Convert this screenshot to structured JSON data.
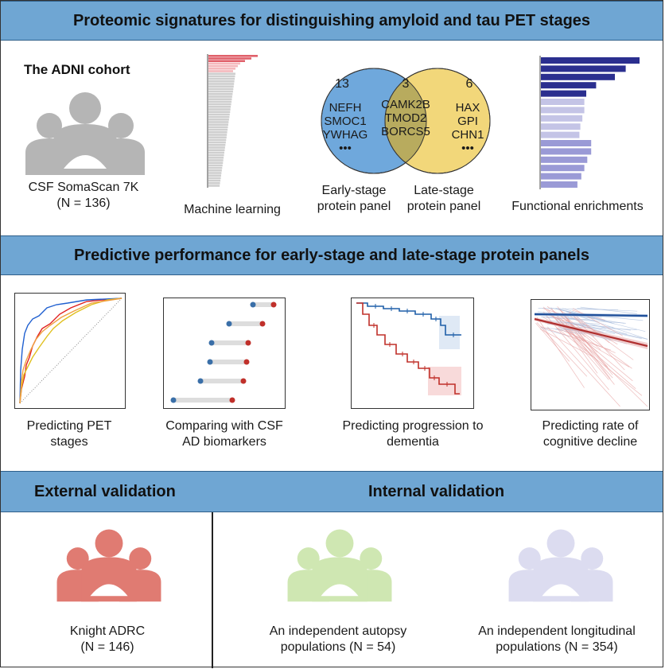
{
  "header1": {
    "title": "Proteomic signatures for distinguishing amyloid and tau PET stages"
  },
  "cohort": {
    "title": "The ADNI cohort",
    "line1": "CSF SomaScan 7K",
    "line2": "(N = 136)"
  },
  "ml": {
    "label": "Machine learning"
  },
  "venn": {
    "left_count": "13",
    "mid_count": "3",
    "right_count": "6",
    "left_proteins": [
      "NEFH",
      "SMOC1",
      "YWHAG",
      "•••"
    ],
    "mid_proteins": [
      "CAMK2B",
      "TMOD2",
      "BORCS5"
    ],
    "right_proteins": [
      "HAX",
      "GPI",
      "CHN1",
      "•••"
    ],
    "left_label_1": "Early-stage",
    "left_label_2": "protein panel",
    "right_label_1": "Late-stage",
    "right_label_2": "protein panel"
  },
  "enrich": {
    "label": "Functional enrichments",
    "bars": [
      {
        "value": 1.0,
        "color": "#2b2f8f"
      },
      {
        "value": 0.86,
        "color": "#2b2f8f"
      },
      {
        "value": 0.75,
        "color": "#2b2f8f"
      },
      {
        "value": 0.56,
        "color": "#2b2f8f"
      },
      {
        "value": 0.46,
        "color": "#2b2f8f"
      },
      {
        "value": 0.44,
        "color": "#c4c4e6"
      },
      {
        "value": 0.44,
        "color": "#c4c4e6"
      },
      {
        "value": 0.42,
        "color": "#c4c4e6"
      },
      {
        "value": 0.4,
        "color": "#c4c4e6"
      },
      {
        "value": 0.39,
        "color": "#c4c4e6"
      },
      {
        "value": 0.51,
        "color": "#9a9ad6"
      },
      {
        "value": 0.51,
        "color": "#9a9ad6"
      },
      {
        "value": 0.47,
        "color": "#9a9ad6"
      },
      {
        "value": 0.44,
        "color": "#9a9ad6"
      },
      {
        "value": 0.41,
        "color": "#9a9ad6"
      },
      {
        "value": 0.37,
        "color": "#9a9ad6"
      }
    ]
  },
  "header2": {
    "title": "Predictive performance for early-stage and late-stage protein panels"
  },
  "panels": {
    "pet_1": "Predicting PET",
    "pet_2": "stages",
    "csf_1": "Comparing with CSF",
    "csf_2": "AD biomarkers",
    "prog_1": "Predicting progression to",
    "prog_2": "dementia",
    "rate_1": "Predicting rate of",
    "rate_2": "cognitive decline"
  },
  "validation": {
    "external_title": "External validation",
    "internal_title": "Internal validation",
    "knight_1": "Knight ADRC",
    "knight_2": "(N = 146)",
    "autopsy_1": "An independent autopsy",
    "autopsy_2": "populations (N = 54)",
    "longit_1": "An independent longitudinal",
    "longit_2": "populations (N = 354)"
  },
  "colors": {
    "band": "#6fa6d3",
    "venn_left": "#6fa8dc",
    "venn_right": "#f2d77a",
    "venn_mid": "#b8ab5e",
    "knight": "#e07b72",
    "autopsy": "#cfe7b2",
    "longitudinal": "#dcdcf0",
    "adni": "#b5b5b5"
  }
}
